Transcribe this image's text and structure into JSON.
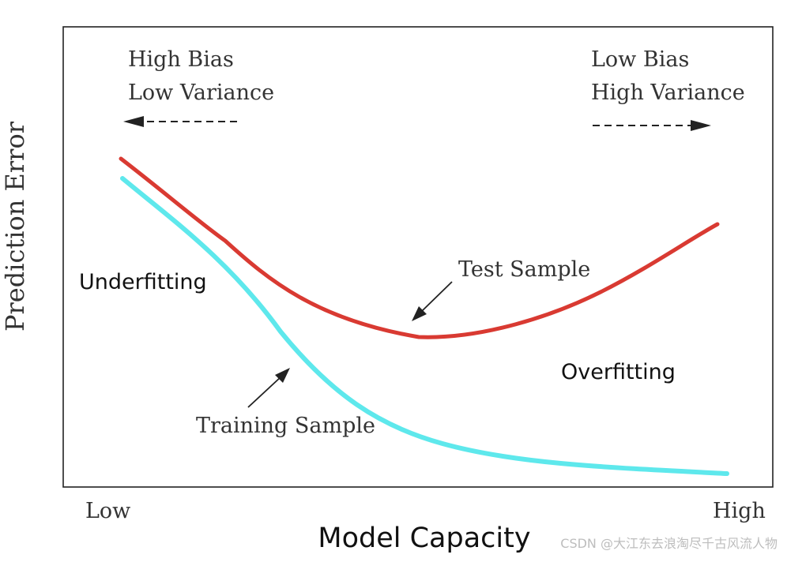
{
  "diagram": {
    "y_axis_label": "Prediction Error",
    "x_axis_label": "Model Capacity",
    "x_low_label": "Low",
    "x_high_label": "High",
    "left_annotation": {
      "line1": "High Bias",
      "line2": "Low Variance"
    },
    "right_annotation": {
      "line1": "Low Bias",
      "line2": "High Variance"
    },
    "underfitting_label": "Underfitting",
    "overfitting_label": "Overfitting",
    "test_curve_label": "Test Sample",
    "training_curve_label": "Training Sample",
    "colors": {
      "test_curve": "#d93a32",
      "training_curve": "#5ee8ec",
      "text": "#333333",
      "frame": "#222222"
    }
  },
  "watermark": "CSDN @大江东去浪淘尽千古风流人物"
}
